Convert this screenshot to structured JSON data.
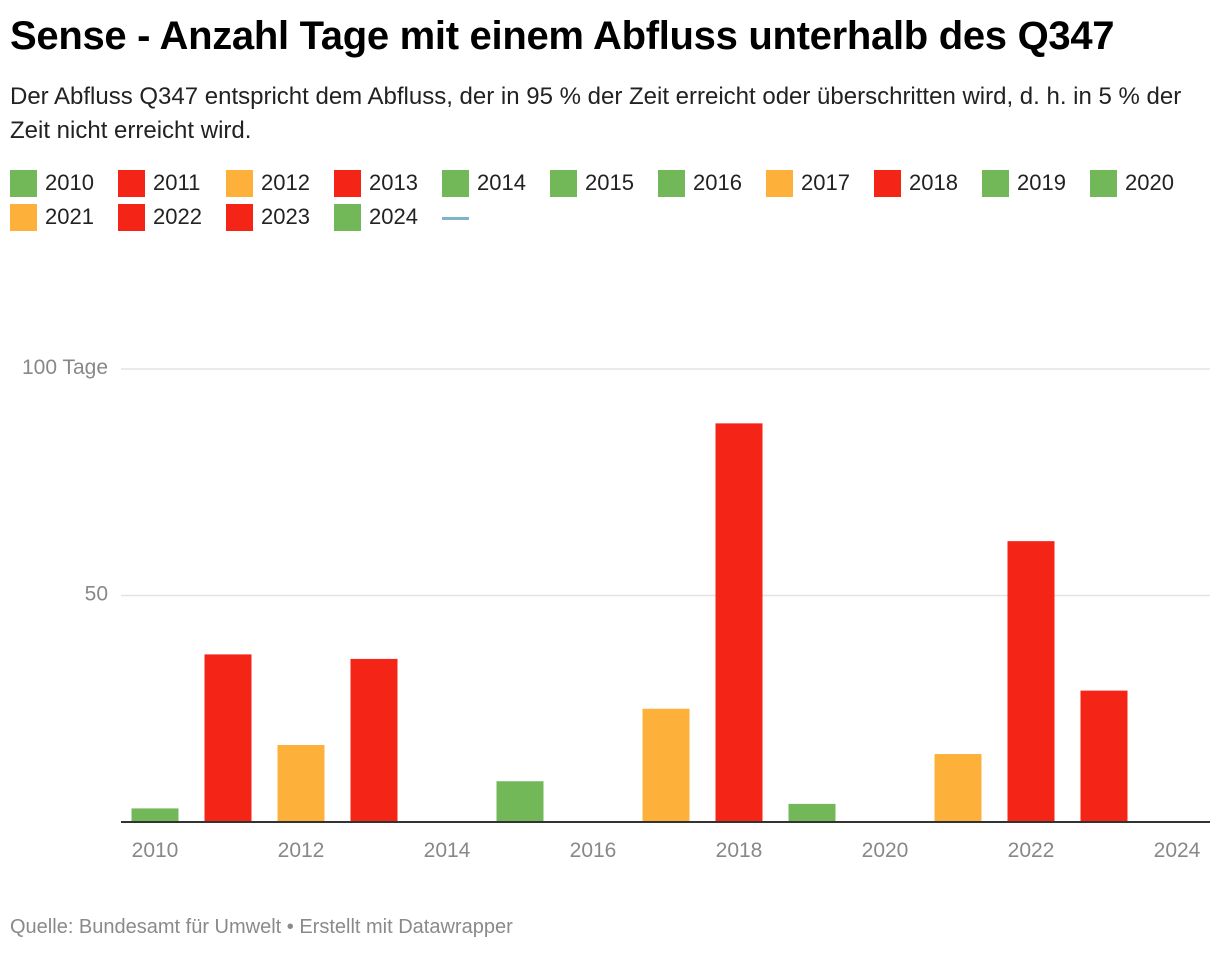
{
  "title": "Sense - Anzahl Tage mit einem Abfluss unterhalb des Q347",
  "subtitle": "Der Abfluss Q347 entspricht dem Abfluss, der in 95 % der Zeit erreicht oder überschritten wird, d. h. in 5 % der Zeit nicht erreicht wird.",
  "colors": {
    "green": "#73b858",
    "red": "#f42516",
    "orange": "#feb13a",
    "line": "#7cb5c8",
    "grid": "#e3e3e3",
    "axis": "#333333",
    "tick": "#888888"
  },
  "legend": [
    {
      "label": "2010",
      "color": "#73b858"
    },
    {
      "label": "2011",
      "color": "#f42516"
    },
    {
      "label": "2012",
      "color": "#feb13a"
    },
    {
      "label": "2013",
      "color": "#f42516"
    },
    {
      "label": "2014",
      "color": "#73b858"
    },
    {
      "label": "2015",
      "color": "#73b858"
    },
    {
      "label": "2016",
      "color": "#73b858"
    },
    {
      "label": "2017",
      "color": "#feb13a"
    },
    {
      "label": "2018",
      "color": "#f42516"
    },
    {
      "label": "2019",
      "color": "#73b858"
    },
    {
      "label": "2020",
      "color": "#73b858"
    },
    {
      "label": "2021",
      "color": "#feb13a"
    },
    {
      "label": "2022",
      "color": "#f42516"
    },
    {
      "label": "2023",
      "color": "#f42516"
    },
    {
      "label": "2024",
      "color": "#73b858"
    }
  ],
  "chart_data": {
    "type": "bar",
    "title": "Sense - Anzahl Tage mit einem Abfluss unterhalb des Q347",
    "categories": [
      "2010",
      "2011",
      "2012",
      "2013",
      "2014",
      "2015",
      "2016",
      "2017",
      "2018",
      "2019",
      "2020",
      "2021",
      "2022",
      "2023",
      "2024"
    ],
    "values": [
      3,
      37,
      17,
      36,
      0,
      9,
      0,
      25,
      88,
      4,
      0,
      15,
      62,
      29,
      0
    ],
    "colors": [
      "#73b858",
      "#f42516",
      "#feb13a",
      "#f42516",
      "#73b858",
      "#73b858",
      "#73b858",
      "#feb13a",
      "#f42516",
      "#73b858",
      "#73b858",
      "#feb13a",
      "#f42516",
      "#f42516",
      "#73b858"
    ],
    "ylim": [
      0,
      100
    ],
    "yticks": [
      {
        "value": 50,
        "label": "50"
      },
      {
        "value": 100,
        "label": "100 Tage"
      }
    ],
    "xticks": [
      "2010",
      "2012",
      "2014",
      "2016",
      "2018",
      "2020",
      "2022",
      "2024"
    ],
    "grid": true,
    "legend_position": "top"
  },
  "footer": "Quelle: Bundesamt für Umwelt • Erstellt mit Datawrapper"
}
